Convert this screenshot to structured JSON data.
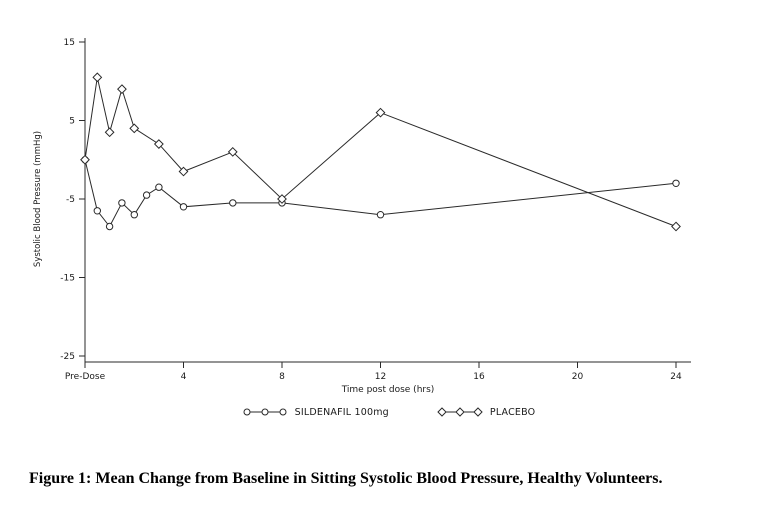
{
  "figure": {
    "caption": "Figure 1: Mean Change from Baseline in Sitting Systolic Blood Pressure, Healthy Volunteers."
  },
  "chart_data": {
    "type": "line",
    "title": "",
    "xlabel": "Time post dose (hrs)",
    "ylabel": "Systolic Blood Pressure (mmHg)",
    "xlim": [
      0,
      24.6
    ],
    "ylim": [
      -25,
      15.5
    ],
    "grid": false,
    "legend_position": "bottom",
    "line_color": "#2a2a2a",
    "x_ticks": [
      {
        "value": 0,
        "label": "Pre-Dose"
      },
      {
        "value": 4,
        "label": "4"
      },
      {
        "value": 8,
        "label": "8"
      },
      {
        "value": 12,
        "label": "12"
      },
      {
        "value": 16,
        "label": "16"
      },
      {
        "value": 20,
        "label": "20"
      },
      {
        "value": 24,
        "label": "24"
      }
    ],
    "y_ticks": [
      {
        "value": 15,
        "label": "15"
      },
      {
        "value": 5,
        "label": "5"
      },
      {
        "value": -5,
        "label": "-5"
      },
      {
        "value": -15,
        "label": "-15"
      },
      {
        "value": -25,
        "label": "-25"
      }
    ],
    "series": [
      {
        "name": "SILDENAFIL 100mg",
        "marker": "circle",
        "x": [
          0,
          0.5,
          1,
          1.5,
          2,
          2.5,
          3,
          4,
          6,
          8,
          12,
          24
        ],
        "y": [
          0,
          -6.5,
          -8.5,
          -5.5,
          -7,
          -4.5,
          -3.5,
          -6,
          -5.5,
          -5.5,
          -7,
          -3
        ]
      },
      {
        "name": "PLACEBO",
        "marker": "diamond",
        "x": [
          0,
          0.5,
          1,
          1.5,
          2,
          3,
          4,
          6,
          8,
          12,
          24
        ],
        "y": [
          0,
          10.5,
          3.5,
          9,
          4,
          2,
          -1.5,
          1,
          -5,
          6,
          -8.5
        ]
      }
    ]
  }
}
